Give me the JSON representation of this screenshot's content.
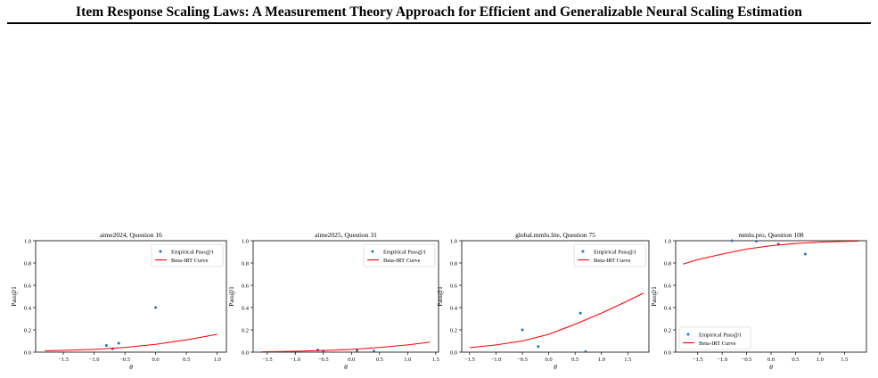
{
  "page": {
    "title": "Item Response Scaling Laws: A Measurement Theory Approach for Efficient and Generalizable Neural Scaling Estimation"
  },
  "chart_data": [
    {
      "type": "scatter",
      "title": "aime2024, Question 16",
      "xlabel": "θ",
      "ylabel": "Pass@1",
      "xlim": [
        -1.95,
        1.15
      ],
      "ylim": [
        0,
        1
      ],
      "xticks": [
        -1.5,
        -1.0,
        -0.5,
        0.0,
        0.5,
        1.0
      ],
      "xtick_labels": [
        "−1.5",
        "−1.0",
        "−0.5",
        "0.0",
        "0.5",
        "1.0"
      ],
      "yticks": [
        0,
        0.2,
        0.4,
        0.6,
        0.8,
        1.0
      ],
      "ytick_labels": [
        "0.0",
        "0.2",
        "0.4",
        "0.6",
        "0.8",
        "1.0"
      ],
      "legend": {
        "placement": "upper-right",
        "scatter_label": "Empirical Pass@1",
        "curve_label": "Beta-IRT Curve"
      },
      "series": [
        {
          "name": "Empirical Pass@1",
          "kind": "scatter",
          "color": "#1f77b4",
          "points": [
            [
              -0.8,
              0.06
            ],
            [
              -0.7,
              0.03
            ],
            [
              -0.6,
              0.08
            ],
            [
              0.0,
              0.4
            ]
          ]
        },
        {
          "name": "Beta-IRT Curve",
          "kind": "line",
          "color": "#ff0000",
          "points": [
            [
              -1.8,
              0.012
            ],
            [
              -1.5,
              0.016
            ],
            [
              -1.0,
              0.025
            ],
            [
              -0.5,
              0.042
            ],
            [
              0.0,
              0.07
            ],
            [
              0.5,
              0.11
            ],
            [
              1.0,
              0.16
            ]
          ]
        }
      ]
    },
    {
      "type": "scatter",
      "title": "aime2025, Question 31",
      "xlabel": "θ",
      "ylabel": "Pass@1",
      "xlim": [
        -1.75,
        1.55
      ],
      "ylim": [
        0,
        1
      ],
      "xticks": [
        -1.5,
        -1.0,
        -0.5,
        0.0,
        0.5,
        1.0,
        1.5
      ],
      "xtick_labels": [
        "−1.5",
        "−1.0",
        "−0.5",
        "0.0",
        "0.5",
        "1.0",
        "1.5"
      ],
      "yticks": [
        0,
        0.2,
        0.4,
        0.6,
        0.8,
        1.0
      ],
      "ytick_labels": [
        "0.0",
        "0.2",
        "0.4",
        "0.6",
        "0.8",
        "1.0"
      ],
      "legend": {
        "placement": "upper-right",
        "scatter_label": "Empirical Pass@1",
        "curve_label": "Beta-IRT Curve"
      },
      "series": [
        {
          "name": "Empirical Pass@1",
          "kind": "scatter",
          "color": "#1f77b4",
          "points": [
            [
              -0.6,
              0.02
            ],
            [
              -0.5,
              0.01
            ],
            [
              0.1,
              0.015
            ],
            [
              0.4,
              0.01
            ]
          ]
        },
        {
          "name": "Beta-IRT Curve",
          "kind": "line",
          "color": "#ff0000",
          "points": [
            [
              -1.6,
              0.003
            ],
            [
              -1.0,
              0.008
            ],
            [
              -0.5,
              0.015
            ],
            [
              0.0,
              0.025
            ],
            [
              0.5,
              0.042
            ],
            [
              1.0,
              0.065
            ],
            [
              1.4,
              0.09
            ]
          ]
        }
      ]
    },
    {
      "type": "scatter",
      "title": "global.mmlu.lite, Question 75",
      "xlabel": "θ",
      "ylabel": "Pass@1",
      "xlim": [
        -1.65,
        1.9
      ],
      "ylim": [
        0,
        1
      ],
      "xticks": [
        -1.5,
        -1.0,
        -0.5,
        0.0,
        0.5,
        1.0,
        1.5
      ],
      "xtick_labels": [
        "−1.5",
        "−1.0",
        "−0.5",
        "0.0",
        "0.5",
        "1.0",
        "1.5"
      ],
      "yticks": [
        0,
        0.2,
        0.4,
        0.6,
        0.8,
        1.0
      ],
      "ytick_labels": [
        "0.0",
        "0.2",
        "0.4",
        "0.6",
        "0.8",
        "1.0"
      ],
      "legend": {
        "placement": "upper-right",
        "scatter_label": "Empirical Pass@1",
        "curve_label": "Beta-IRT Curve"
      },
      "series": [
        {
          "name": "Empirical Pass@1",
          "kind": "scatter",
          "color": "#1f77b4",
          "points": [
            [
              -0.5,
              0.2
            ],
            [
              -0.2,
              0.05
            ],
            [
              0.6,
              0.35
            ],
            [
              0.7,
              0.005
            ]
          ]
        },
        {
          "name": "Beta-IRT Curve",
          "kind": "line",
          "color": "#ff0000",
          "points": [
            [
              -1.5,
              0.04
            ],
            [
              -1.0,
              0.065
            ],
            [
              -0.5,
              0.1
            ],
            [
              0.0,
              0.16
            ],
            [
              0.5,
              0.25
            ],
            [
              1.0,
              0.35
            ],
            [
              1.5,
              0.46
            ],
            [
              1.8,
              0.53
            ]
          ]
        }
      ]
    },
    {
      "type": "scatter",
      "title": "mmlu.pro, Question 108",
      "xlabel": "θ",
      "ylabel": "Pass@1",
      "xlim": [
        -1.95,
        1.95
      ],
      "ylim": [
        0,
        1
      ],
      "xticks": [
        -1.5,
        -1.0,
        -0.5,
        0.0,
        0.5,
        1.0,
        1.5
      ],
      "xtick_labels": [
        "−1.5",
        "−1.0",
        "−0.5",
        "0.0",
        "0.5",
        "1.0",
        "1.5"
      ],
      "yticks": [
        0,
        0.2,
        0.4,
        0.6,
        0.8,
        1.0
      ],
      "ytick_labels": [
        "0.0",
        "0.2",
        "0.4",
        "0.6",
        "0.8",
        "1.0"
      ],
      "legend": {
        "placement": "lower-left",
        "scatter_label": "Empirical Pass@1",
        "curve_label": "Beta-IRT Curve"
      },
      "series": [
        {
          "name": "Empirical Pass@1",
          "kind": "scatter",
          "color": "#1f77b4",
          "points": [
            [
              -0.8,
              1.0
            ],
            [
              -0.3,
              0.995
            ],
            [
              0.15,
              0.97
            ],
            [
              0.7,
              0.88
            ]
          ]
        },
        {
          "name": "Beta-IRT Curve",
          "kind": "line",
          "color": "#ff0000",
          "points": [
            [
              -1.8,
              0.79
            ],
            [
              -1.5,
              0.83
            ],
            [
              -1.0,
              0.88
            ],
            [
              -0.5,
              0.925
            ],
            [
              0.0,
              0.955
            ],
            [
              0.5,
              0.975
            ],
            [
              1.0,
              0.987
            ],
            [
              1.5,
              0.994
            ],
            [
              1.8,
              0.996
            ]
          ]
        }
      ]
    }
  ]
}
